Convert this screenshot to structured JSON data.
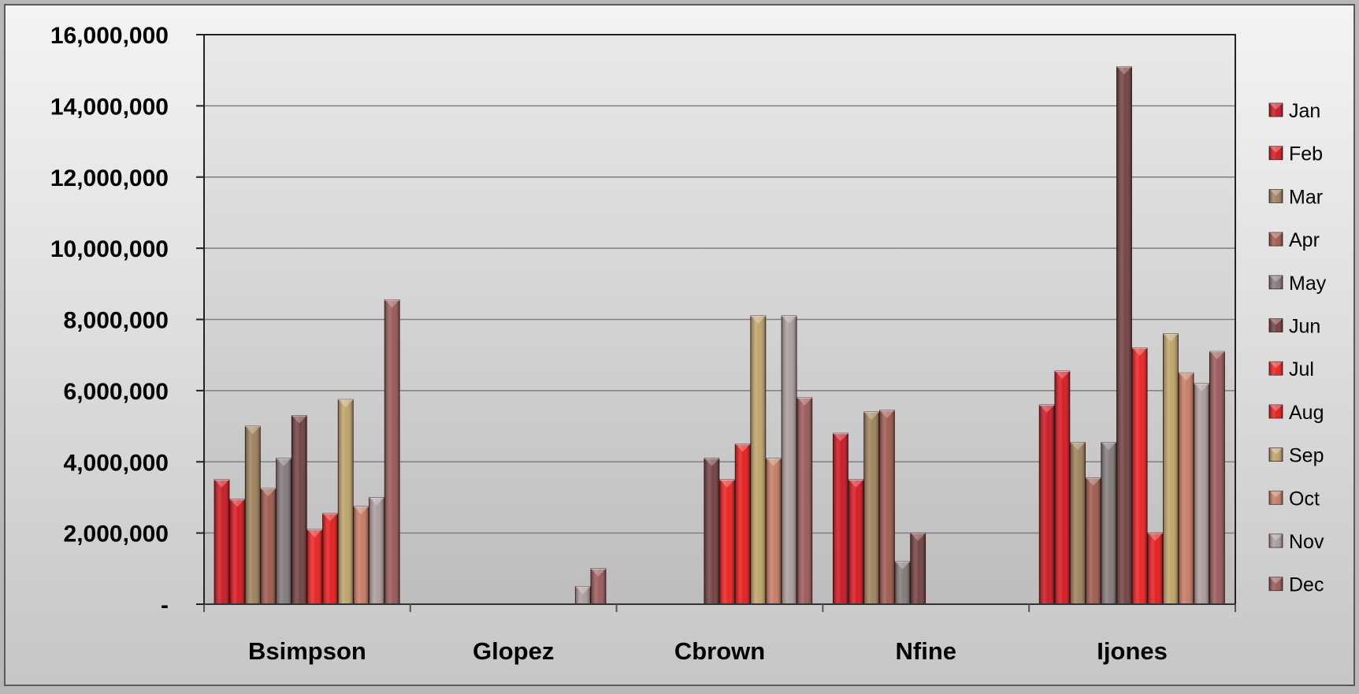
{
  "chart_data": {
    "type": "bar",
    "title": "",
    "xlabel": "",
    "ylabel": "",
    "ylim": [
      0,
      16000000
    ],
    "yticks": [
      {
        "value": 0,
        "label": "-"
      },
      {
        "value": 2000000,
        "label": "2,000,000"
      },
      {
        "value": 4000000,
        "label": "4,000,000"
      },
      {
        "value": 6000000,
        "label": "6,000,000"
      },
      {
        "value": 8000000,
        "label": "8,000,000"
      },
      {
        "value": 10000000,
        "label": "10,000,000"
      },
      {
        "value": 12000000,
        "label": "12,000,000"
      },
      {
        "value": 14000000,
        "label": "14,000,000"
      },
      {
        "value": 16000000,
        "label": "16,000,000"
      }
    ],
    "grid": true,
    "legend": "right",
    "categories": [
      "Bsimpson",
      "Glopez",
      "Cbrown",
      "Nfine",
      "Ijones"
    ],
    "series": [
      {
        "name": "Jan",
        "color": "#c8101a",
        "values": [
          3500000,
          0,
          0,
          4800000,
          5600000
        ]
      },
      {
        "name": "Feb",
        "color": "#d51018",
        "values": [
          2950000,
          0,
          0,
          3500000,
          6550000
        ]
      },
      {
        "name": "Mar",
        "color": "#9a7d55",
        "values": [
          5000000,
          0,
          0,
          5400000,
          4550000
        ]
      },
      {
        "name": "Apr",
        "color": "#9b5446",
        "values": [
          3250000,
          0,
          0,
          5450000,
          3550000
        ]
      },
      {
        "name": "May",
        "color": "#7e7575",
        "values": [
          4100000,
          0,
          0,
          1200000,
          4550000
        ]
      },
      {
        "name": "Jun",
        "color": "#6d3a3a",
        "values": [
          5300000,
          0,
          4100000,
          2000000,
          15100000
        ]
      },
      {
        "name": "Jul",
        "color": "#ea1a1a",
        "values": [
          2100000,
          0,
          3500000,
          0,
          7200000
        ]
      },
      {
        "name": "Aug",
        "color": "#e51414",
        "values": [
          2550000,
          0,
          4500000,
          0,
          2000000
        ]
      },
      {
        "name": "Sep",
        "color": "#bca063",
        "values": [
          5750000,
          0,
          8100000,
          0,
          7600000
        ]
      },
      {
        "name": "Oct",
        "color": "#c4775e",
        "values": [
          2750000,
          0,
          4100000,
          0,
          6500000
        ]
      },
      {
        "name": "Nov",
        "color": "#a89898",
        "values": [
          3000000,
          500000,
          8100000,
          0,
          6200000
        ]
      },
      {
        "name": "Dec",
        "color": "#965353",
        "values": [
          8550000,
          1000000,
          5800000,
          0,
          7100000
        ]
      }
    ]
  }
}
